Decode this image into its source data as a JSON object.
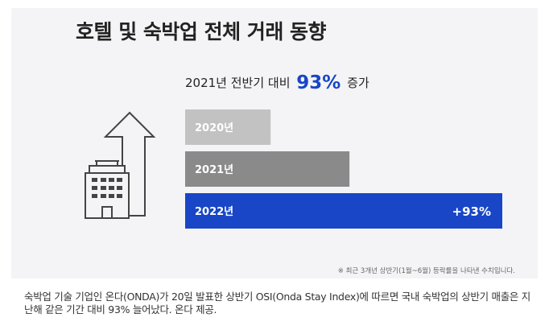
{
  "header": {
    "title": "호텔 및 숙박업 전체 거래 동향",
    "subtitle_prefix": "2021년 전반기 대비",
    "subtitle_pct": "93%",
    "subtitle_suffix": "증가"
  },
  "icons": [
    "building-icon",
    "up-arrow-icon"
  ],
  "colors": {
    "bar_2020": "#c2c2c2",
    "bar_2021": "#8a8a8a",
    "bar_2022": "#1846c6",
    "accent": "#1846c6"
  },
  "chart_data": {
    "type": "bar",
    "orientation": "horizontal",
    "categories": [
      "2020년",
      "2021년",
      "2022년"
    ],
    "values": [
      52,
      100,
      193
    ],
    "value_labels": [
      "",
      "",
      "+93%"
    ],
    "title": "호텔 및 숙박업 전체 거래 동향",
    "subtitle": "2021년 전반기 대비 93% 증가",
    "grid": false
  },
  "note": "※ 최근 3개년 상반기(1월~6월) 등락률을 나타낸 수치입니다.",
  "caption": "숙박업 기술 기업인 온다(ONDA)가 20일 발표한 상반기 OSI(Onda Stay Index)에 따르면 국내 숙박업의 상반기 매출은 지난해 같은 기간 대비 93% 늘어났다. 온다 제공."
}
